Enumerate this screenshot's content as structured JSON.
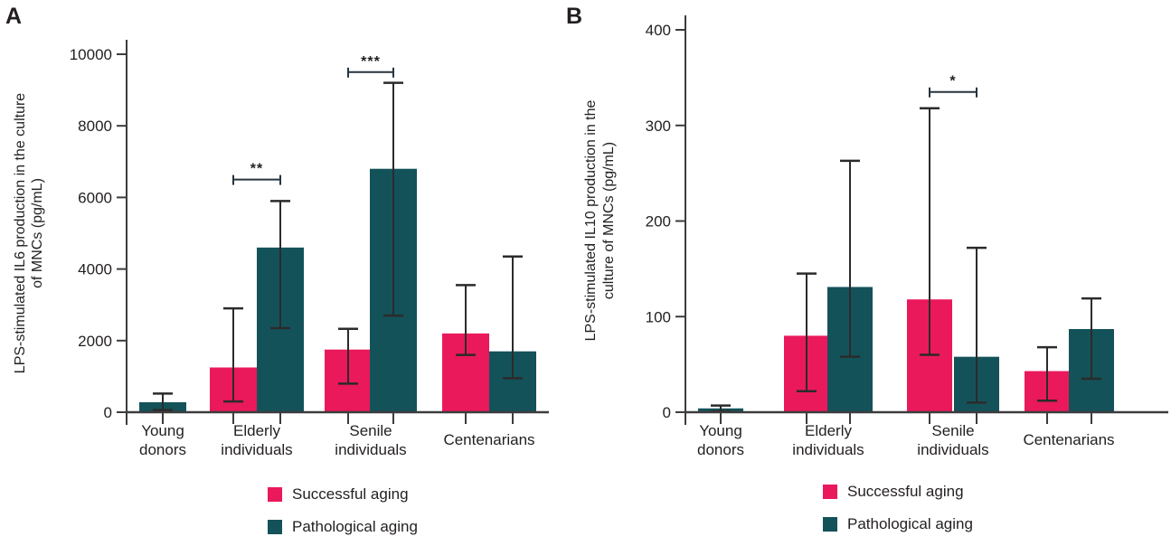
{
  "figure_type": "two-panel grouped bar chart with error bars",
  "colors": {
    "successful_aging": "#EA195B",
    "pathological_aging": "#14525A",
    "axis": "#3C3C3C",
    "error_bar": "#2B2B2B",
    "text": "#231F20",
    "significance": "#28343E",
    "background": "#FFFFFF"
  },
  "chart_data": [
    {
      "type": "bar",
      "panel_letter": "A",
      "ylabel": "LPS-stimulated IL6 production in the culture of MNCs (pg/mL)",
      "ylabel_lines": [
        "LPS-stimulated IL6 production in the culture",
        "of MNCs (pg/mL)"
      ],
      "ylim": [
        0,
        10000
      ],
      "yticks": [
        0,
        2000,
        4000,
        6000,
        8000,
        10000
      ],
      "grid": false,
      "legend_position": "bottom",
      "categories": [
        {
          "label": "Young donors",
          "label_lines": [
            "Young",
            "donors"
          ]
        },
        {
          "label": "Elderly individuals",
          "label_lines": [
            "Elderly",
            "individuals"
          ]
        },
        {
          "label": "Senile individuals",
          "label_lines": [
            "Senile",
            "individuals"
          ]
        },
        {
          "label": "Centenarians",
          "label_lines": [
            "Centenarians"
          ]
        }
      ],
      "series": [
        {
          "name": "Successful aging",
          "color": "#EA195B",
          "values": [
            null,
            1250,
            1750,
            2200
          ],
          "err_top": [
            null,
            2900,
            2330,
            3550
          ],
          "err_bot": [
            null,
            300,
            800,
            1600
          ]
        },
        {
          "name": "Pathological aging",
          "color": "#14525A",
          "values": [
            280,
            4600,
            6800,
            1700
          ],
          "err_top": [
            520,
            5900,
            9200,
            4350
          ],
          "err_bot": [
            60,
            2350,
            2700,
            950
          ]
        }
      ],
      "significance": [
        {
          "category_index": 1,
          "label": "**",
          "level": 6500
        },
        {
          "category_index": 2,
          "label": "***",
          "level": 9500
        }
      ]
    },
    {
      "type": "bar",
      "panel_letter": "B",
      "ylabel": "LPS-stimulated IL10 production in the culture of MNCs (pg/mL)",
      "ylabel_lines": [
        "LPS-stimulated IL10 production in the",
        "culture of MNCs (pg/mL)"
      ],
      "ylim": [
        0,
        400
      ],
      "yticks": [
        0,
        100,
        200,
        300,
        400
      ],
      "grid": false,
      "legend_position": "bottom",
      "categories": [
        {
          "label": "Young donors",
          "label_lines": [
            "Young",
            "donors"
          ]
        },
        {
          "label": "Elderly individuals",
          "label_lines": [
            "Elderly",
            "individuals"
          ]
        },
        {
          "label": "Senile individuals",
          "label_lines": [
            "Senile",
            "individuals"
          ]
        },
        {
          "label": "Centenarians",
          "label_lines": [
            "Centenarians"
          ]
        }
      ],
      "series": [
        {
          "name": "Successful aging",
          "color": "#EA195B",
          "values": [
            null,
            80,
            118,
            43
          ],
          "err_top": [
            null,
            145,
            318,
            68
          ],
          "err_bot": [
            null,
            22,
            60,
            12
          ]
        },
        {
          "name": "Pathological aging",
          "color": "#14525A",
          "values": [
            4,
            131,
            58,
            87
          ],
          "err_top": [
            7,
            263,
            172,
            119
          ],
          "err_bot": [
            1,
            58,
            10,
            35
          ]
        }
      ],
      "significance": [
        {
          "category_index": 2,
          "label": "*",
          "level": 335
        }
      ]
    }
  ]
}
